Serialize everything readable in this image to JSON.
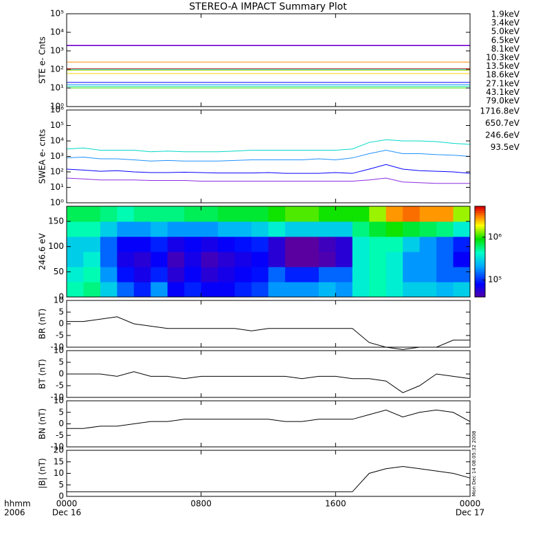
{
  "chart_data": [
    {
      "type": "line",
      "title": "STEREO-A IMPACT Summary Plot",
      "ylabel": "STE e- Cnts",
      "log": true,
      "legend": "right",
      "xlim": [
        0,
        24
      ],
      "ylim": [
        1,
        100000
      ],
      "yticks": [
        {
          "value": 1,
          "label": "10⁰"
        },
        {
          "value": 10,
          "label": "10¹"
        },
        {
          "value": 100,
          "label": "10²"
        },
        {
          "value": 1000,
          "label": "10³"
        },
        {
          "value": 10000,
          "label": "10⁴"
        },
        {
          "value": 100000,
          "label": "10⁵"
        }
      ],
      "x": [
        0,
        6,
        12,
        18,
        24
      ],
      "series": [
        {
          "name": "1.9keV",
          "color": "#8a00d0",
          "values": [
            2000,
            2000,
            2000,
            2000,
            2000
          ]
        },
        {
          "name": "3.4keV",
          "color": "#5a00c8",
          "values": [
            1900,
            1900,
            1900,
            1900,
            1900
          ]
        },
        {
          "name": "5.0keV",
          "color": "#0000ff",
          "values": [
            20,
            20,
            20,
            20,
            20
          ]
        },
        {
          "name": "6.5keV",
          "color": "#0090ff",
          "values": [
            15,
            15,
            15,
            15,
            15
          ]
        },
        {
          "name": "8.1keV",
          "color": "#00d0d0",
          "values": [
            100,
            100,
            100,
            100,
            100
          ]
        },
        {
          "name": "10.3keV",
          "color": "#00e090",
          "values": [
            12,
            12,
            12,
            12,
            12
          ]
        },
        {
          "name": "13.5keV",
          "color": "#40e000",
          "values": [
            10,
            10,
            10,
            10,
            10
          ]
        },
        {
          "name": "18.6keV",
          "color": "#c0e000",
          "values": [
            90,
            90,
            90,
            90,
            90
          ]
        },
        {
          "name": "27.1keV",
          "color": "#ffd000",
          "values": [
            60,
            60,
            60,
            60,
            60
          ]
        },
        {
          "name": "43.1keV",
          "color": "#ff8c00",
          "values": [
            250,
            250,
            250,
            250,
            250
          ]
        },
        {
          "name": "79.0keV",
          "color": "#e02020",
          "values": [
            110,
            110,
            110,
            110,
            110
          ]
        }
      ]
    },
    {
      "type": "line",
      "ylabel": "SWEA e- cnts",
      "log": true,
      "legend": "right",
      "xlim": [
        0,
        24
      ],
      "ylim": [
        1,
        1000000
      ],
      "yticks": [
        {
          "value": 1,
          "label": "10⁰"
        },
        {
          "value": 10,
          "label": "10¹"
        },
        {
          "value": 100,
          "label": "10²"
        },
        {
          "value": 1000,
          "label": "10³"
        },
        {
          "value": 10000,
          "label": "10⁴"
        },
        {
          "value": 100000,
          "label": "10⁵"
        },
        {
          "value": 1000000,
          "label": "10⁶"
        }
      ],
      "x": [
        0,
        1,
        2,
        3,
        4,
        5,
        6,
        7,
        8,
        9,
        10,
        11,
        12,
        13,
        14,
        15,
        16,
        17,
        18,
        19,
        20,
        21,
        22,
        23,
        24
      ],
      "series": [
        {
          "name": "1716.8eV",
          "color": "#8a2be2",
          "values": [
            40,
            35,
            30,
            30,
            30,
            28,
            28,
            28,
            25,
            25,
            25,
            25,
            25,
            25,
            25,
            25,
            25,
            25,
            30,
            40,
            22,
            20,
            18,
            18,
            18
          ]
        },
        {
          "name": "650.7eV",
          "color": "#0000ff",
          "values": [
            150,
            130,
            110,
            120,
            100,
            90,
            90,
            95,
            90,
            85,
            85,
            85,
            90,
            80,
            80,
            80,
            90,
            80,
            150,
            300,
            150,
            120,
            110,
            100,
            80
          ]
        },
        {
          "name": "246.6eV",
          "color": "#1e90ff",
          "values": [
            800,
            900,
            700,
            700,
            600,
            500,
            550,
            500,
            500,
            500,
            550,
            600,
            600,
            600,
            600,
            700,
            600,
            800,
            1500,
            2500,
            1500,
            1500,
            1300,
            1200,
            1000
          ]
        },
        {
          "name": "93.5eV",
          "color": "#00d8c8",
          "values": [
            3000,
            3500,
            2500,
            2500,
            2500,
            2000,
            2200,
            2000,
            2000,
            2000,
            2200,
            2500,
            2500,
            2500,
            2500,
            2500,
            2500,
            3000,
            8000,
            12000,
            10000,
            10000,
            9000,
            7000,
            6000
          ]
        }
      ]
    },
    {
      "type": "heatmap",
      "ylabel": "246.6 eV",
      "xlim": [
        0,
        24
      ],
      "ylim": [
        0,
        180
      ],
      "yticks": [
        0,
        50,
        100,
        150
      ],
      "x_bins": [
        0,
        1,
        2,
        3,
        4,
        5,
        6,
        7,
        8,
        9,
        10,
        11,
        12,
        13,
        14,
        15,
        16,
        17,
        18,
        19,
        20,
        21,
        22,
        23,
        24
      ],
      "y_bins": [
        0,
        30,
        60,
        90,
        120,
        150,
        180
      ],
      "zlim": [
        40000,
        5300000
      ],
      "log": true,
      "zticks": [
        {
          "value": 100000,
          "label": "10⁵"
        },
        {
          "value": 1000000,
          "label": "10⁶"
        }
      ],
      "values": [
        [
          500000,
          600000,
          300000,
          150000,
          100000,
          200000,
          80000,
          100000,
          80000,
          80000,
          100000,
          120000,
          200000,
          200000,
          200000,
          250000,
          200000,
          400000,
          500000,
          400000,
          300000,
          300000,
          250000,
          300000
        ],
        [
          400000,
          500000,
          200000,
          90000,
          70000,
          100000,
          60000,
          80000,
          60000,
          70000,
          80000,
          90000,
          150000,
          100000,
          100000,
          150000,
          150000,
          400000,
          500000,
          400000,
          200000,
          200000,
          150000,
          150000
        ],
        [
          300000,
          400000,
          150000,
          70000,
          60000,
          80000,
          50000,
          70000,
          50000,
          60000,
          70000,
          80000,
          60000,
          40000,
          40000,
          45000,
          60000,
          400000,
          500000,
          400000,
          200000,
          200000,
          150000,
          80000
        ],
        [
          300000,
          300000,
          150000,
          80000,
          80000,
          100000,
          70000,
          80000,
          70000,
          80000,
          90000,
          100000,
          60000,
          40000,
          40000,
          50000,
          60000,
          400000,
          500000,
          500000,
          300000,
          200000,
          150000,
          100000
        ],
        [
          500000,
          500000,
          300000,
          200000,
          200000,
          250000,
          200000,
          200000,
          200000,
          250000,
          250000,
          300000,
          400000,
          300000,
          300000,
          300000,
          300000,
          600000,
          800000,
          1000000,
          800000,
          700000,
          600000,
          400000
        ],
        [
          700000,
          700000,
          600000,
          500000,
          600000,
          600000,
          600000,
          700000,
          700000,
          800000,
          800000,
          800000,
          1000000,
          1200000,
          1200000,
          1000000,
          1000000,
          1000000,
          1500000,
          3000000,
          3500000,
          3000000,
          3000000,
          1500000
        ]
      ]
    },
    {
      "type": "line",
      "ylabel": "BR (nT)",
      "xlim": [
        0,
        24
      ],
      "ylim": [
        -10,
        10
      ],
      "yticks": [
        -10,
        -5,
        0,
        5,
        10
      ],
      "x": [
        0,
        1,
        2,
        3,
        4,
        5,
        6,
        7,
        8,
        9,
        10,
        11,
        12,
        13,
        14,
        15,
        16,
        17,
        18,
        19,
        20,
        21,
        22,
        23,
        24
      ],
      "series": [
        {
          "color": "#000000",
          "values": [
            1,
            1,
            2,
            3,
            0,
            -1,
            -2,
            -2,
            -2,
            -2,
            -2,
            -3,
            -2,
            -2,
            -2,
            -2,
            -2,
            -2,
            -8,
            -10,
            -11,
            -10,
            -10,
            -7,
            -7
          ]
        }
      ]
    },
    {
      "type": "line",
      "ylabel": "BT (nT)",
      "xlim": [
        0,
        24
      ],
      "ylim": [
        -10,
        10
      ],
      "yticks": [
        -10,
        -5,
        0,
        5,
        10
      ],
      "x": [
        0,
        1,
        2,
        3,
        4,
        5,
        6,
        7,
        8,
        9,
        10,
        11,
        12,
        13,
        14,
        15,
        16,
        17,
        18,
        19,
        20,
        21,
        22,
        23,
        24
      ],
      "series": [
        {
          "color": "#000000",
          "values": [
            0,
            0,
            0,
            -1,
            1,
            -1,
            -1,
            -2,
            -1,
            -1,
            -1,
            -1,
            -1,
            -1,
            -2,
            -1,
            -1,
            -2,
            -2,
            -3,
            -8,
            -5,
            0,
            -1,
            -2
          ]
        }
      ]
    },
    {
      "type": "line",
      "ylabel": "BN (nT)",
      "xlim": [
        0,
        24
      ],
      "ylim": [
        -10,
        10
      ],
      "yticks": [
        -10,
        -5,
        0,
        5,
        10
      ],
      "x": [
        0,
        1,
        2,
        3,
        4,
        5,
        6,
        7,
        8,
        9,
        10,
        11,
        12,
        13,
        14,
        15,
        16,
        17,
        18,
        19,
        20,
        21,
        22,
        23,
        24
      ],
      "series": [
        {
          "color": "#000000",
          "values": [
            -2,
            -2,
            -1,
            -1,
            0,
            1,
            1,
            2,
            2,
            2,
            2,
            2,
            2,
            1,
            1,
            2,
            2,
            2,
            4,
            6,
            3,
            5,
            6,
            5,
            1
          ]
        }
      ]
    },
    {
      "type": "line",
      "ylabel": "|B| (nT)",
      "xlim": [
        0,
        24
      ],
      "ylim": [
        0,
        20
      ],
      "yticks": [
        0,
        5,
        10,
        15,
        20
      ],
      "annotation": "Mon Dec 14 08:05:32 2008",
      "x": [
        0,
        1,
        2,
        3,
        4,
        5,
        6,
        7,
        8,
        9,
        10,
        11,
        12,
        13,
        14,
        15,
        16,
        17,
        18,
        19,
        20,
        21,
        22,
        23,
        24
      ],
      "series": [
        {
          "color": "#000000",
          "values": [
            2,
            2,
            2,
            2,
            2,
            2,
            2,
            2,
            2,
            2,
            2,
            2,
            2,
            2,
            2,
            2,
            2,
            2,
            10,
            12,
            13,
            12,
            11,
            10,
            8
          ]
        }
      ],
      "xticks": [
        {
          "value": 0,
          "label": "0000"
        },
        {
          "value": 8,
          "label": "0800"
        },
        {
          "value": 16,
          "label": "1600"
        },
        {
          "value": 24,
          "label": "0000"
        }
      ],
      "xtick_dates": [
        {
          "value": 0,
          "label": "Dec 16"
        },
        {
          "value": 24,
          "label": "Dec 17"
        }
      ],
      "xlabel": "hhmm",
      "year": "2006"
    }
  ]
}
